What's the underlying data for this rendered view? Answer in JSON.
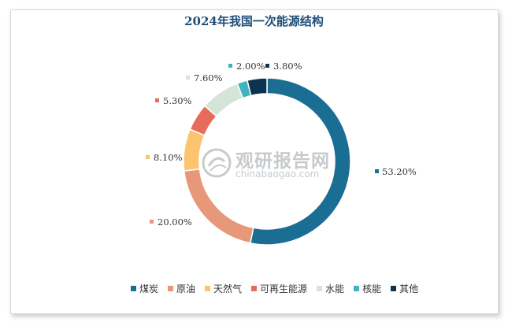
{
  "chart_data": {
    "type": "pie",
    "variant": "donut",
    "title": "2024年我国一次能源结构",
    "categories": [
      "煤炭",
      "原油",
      "天然气",
      "可再生能源",
      "水能",
      "核能",
      "其他"
    ],
    "values": [
      53.2,
      20.0,
      8.1,
      5.3,
      7.6,
      2.0,
      3.8
    ],
    "value_labels": [
      "53.20%",
      "20.00%",
      "8.10%",
      "5.30%",
      "7.60%",
      "2.00%",
      "3.80%"
    ],
    "colors": [
      "#1a6e94",
      "#e8987a",
      "#fcc46f",
      "#e76b5a",
      "#d4e4d7",
      "#3fb4c0",
      "#0c3451"
    ],
    "legend_position": "bottom"
  },
  "watermark": {
    "main": "观研报告网",
    "sub": "chinabaogao.com"
  }
}
